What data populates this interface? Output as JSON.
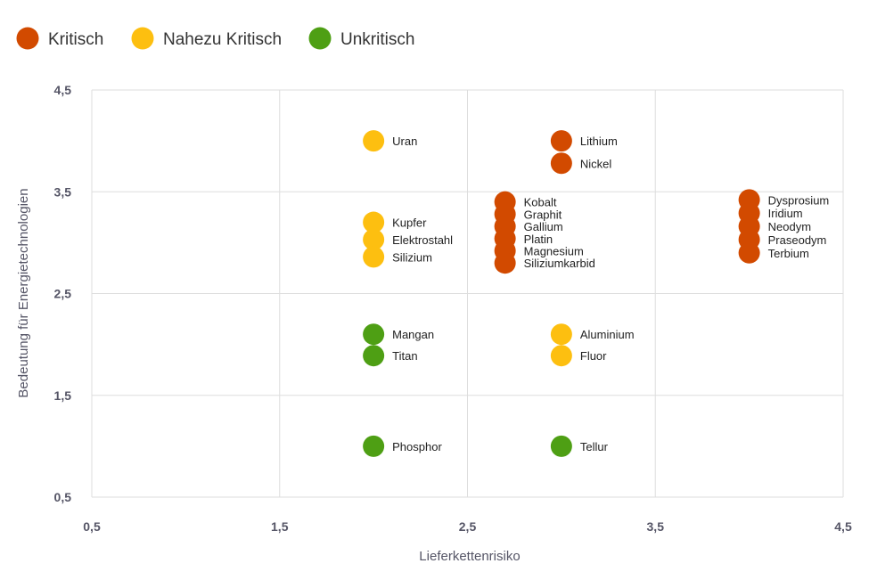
{
  "chart_data": {
    "type": "scatter",
    "xlabel": "Lieferkettenrisiko",
    "ylabel": "Bedeutung für Energietechnologien",
    "xlim": [
      0.5,
      4.5
    ],
    "ylim": [
      0.5,
      4.5
    ],
    "x_ticks": [
      0.5,
      1.5,
      2.5,
      3.5,
      4.5
    ],
    "y_ticks": [
      0.5,
      1.5,
      2.5,
      3.5,
      4.5
    ],
    "x_tick_labels": [
      "0,5",
      "1,5",
      "2,5",
      "3,5",
      "4,5"
    ],
    "y_tick_labels": [
      "0,5",
      "1,5",
      "2,5",
      "3,5",
      "4,5"
    ],
    "grid": true,
    "legend_position": "top-left",
    "legend": [
      {
        "key": "kritisch",
        "label": "Kritisch",
        "color": "#d24a00"
      },
      {
        "key": "nahezu",
        "label": "Nahezu Kritisch",
        "color": "#fdbf10"
      },
      {
        "key": "unkritisch",
        "label": "Unkritisch",
        "color": "#4e9f14"
      }
    ],
    "points": [
      {
        "label": "Uran",
        "x": 2.0,
        "y": 4.0,
        "category": "nahezu"
      },
      {
        "label": "Lithium",
        "x": 3.0,
        "y": 4.0,
        "category": "kritisch"
      },
      {
        "label": "Nickel",
        "x": 3.0,
        "y": 3.78,
        "category": "kritisch"
      },
      {
        "label": "Kobalt",
        "x": 2.7,
        "y": 3.4,
        "category": "kritisch"
      },
      {
        "label": "Graphit",
        "x": 2.7,
        "y": 3.28,
        "category": "kritisch"
      },
      {
        "label": "Gallium",
        "x": 2.7,
        "y": 3.16,
        "category": "kritisch"
      },
      {
        "label": "Platin",
        "x": 2.7,
        "y": 3.04,
        "category": "kritisch"
      },
      {
        "label": "Magnesium",
        "x": 2.7,
        "y": 2.92,
        "category": "kritisch"
      },
      {
        "label": "Siliziumkarbid",
        "x": 2.7,
        "y": 2.8,
        "category": "kritisch"
      },
      {
        "label": "Dysprosium",
        "x": 4.0,
        "y": 3.42,
        "category": "kritisch"
      },
      {
        "label": "Iridium",
        "x": 4.0,
        "y": 3.29,
        "category": "kritisch"
      },
      {
        "label": "Neodym",
        "x": 4.0,
        "y": 3.16,
        "category": "kritisch"
      },
      {
        "label": "Praseodym",
        "x": 4.0,
        "y": 3.03,
        "category": "kritisch"
      },
      {
        "label": "Terbium",
        "x": 4.0,
        "y": 2.9,
        "category": "kritisch"
      },
      {
        "label": "Kupfer",
        "x": 2.0,
        "y": 3.2,
        "category": "nahezu"
      },
      {
        "label": "Elektrostahl",
        "x": 2.0,
        "y": 3.03,
        "category": "nahezu"
      },
      {
        "label": "Silizium",
        "x": 2.0,
        "y": 2.86,
        "category": "nahezu"
      },
      {
        "label": "Mangan",
        "x": 2.0,
        "y": 2.1,
        "category": "unkritisch"
      },
      {
        "label": "Titan",
        "x": 2.0,
        "y": 1.89,
        "category": "unkritisch"
      },
      {
        "label": "Aluminium",
        "x": 3.0,
        "y": 2.1,
        "category": "nahezu"
      },
      {
        "label": "Fluor",
        "x": 3.0,
        "y": 1.89,
        "category": "nahezu"
      },
      {
        "label": "Phosphor",
        "x": 2.0,
        "y": 1.0,
        "category": "unkritisch"
      },
      {
        "label": "Tellur",
        "x": 3.0,
        "y": 1.0,
        "category": "unkritisch"
      }
    ]
  }
}
